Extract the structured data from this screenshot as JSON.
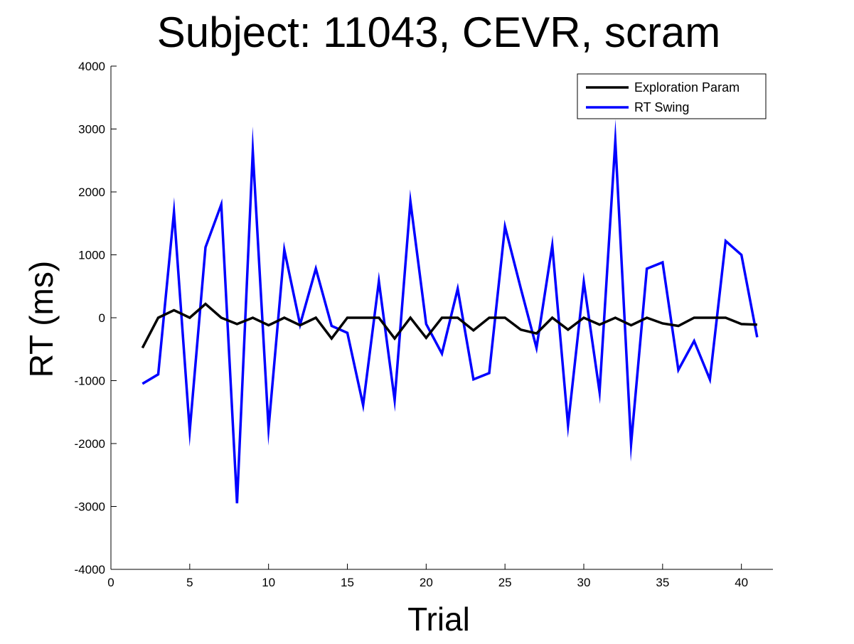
{
  "chart_data": {
    "type": "line",
    "title": "Subject: 11043, CEVR, scram",
    "xlabel": "Trial",
    "ylabel": "RT (ms)",
    "xlim": [
      0,
      42
    ],
    "ylim": [
      -4000,
      4000
    ],
    "xticks": [
      0,
      5,
      10,
      15,
      20,
      25,
      30,
      35,
      40
    ],
    "yticks": [
      -4000,
      -3000,
      -2000,
      -1000,
      0,
      1000,
      2000,
      3000,
      4000
    ],
    "grid": false,
    "legend_position": "top-right",
    "x": [
      2,
      3,
      4,
      5,
      6,
      7,
      8,
      9,
      10,
      11,
      12,
      13,
      14,
      15,
      16,
      17,
      18,
      19,
      20,
      21,
      22,
      23,
      24,
      25,
      26,
      27,
      28,
      29,
      30,
      31,
      32,
      33,
      34,
      35,
      36,
      37,
      38,
      39,
      40,
      41
    ],
    "series": [
      {
        "name": "Exploration Param",
        "color": "#000000",
        "values": [
          -480,
          0,
          120,
          0,
          220,
          0,
          -100,
          0,
          -120,
          0,
          -120,
          0,
          -330,
          0,
          0,
          0,
          -330,
          0,
          -320,
          0,
          0,
          -200,
          0,
          0,
          -190,
          -250,
          0,
          -190,
          0,
          -110,
          0,
          -120,
          0,
          -90,
          -130,
          0,
          0,
          0,
          -100,
          -110
        ]
      },
      {
        "name": "RT Swing",
        "color": "#0000ff",
        "values": [
          -1050,
          -900,
          1680,
          -1800,
          1120,
          1800,
          -2950,
          2650,
          -1760,
          1080,
          -110,
          780,
          -130,
          -240,
          -1390,
          580,
          -1310,
          1850,
          -100,
          -570,
          460,
          -980,
          -880,
          1450,
          470,
          -480,
          1150,
          -1710,
          570,
          -1180,
          2810,
          -2010,
          780,
          880,
          -830,
          -370,
          -980,
          1220,
          1000,
          -310
        ]
      }
    ]
  }
}
